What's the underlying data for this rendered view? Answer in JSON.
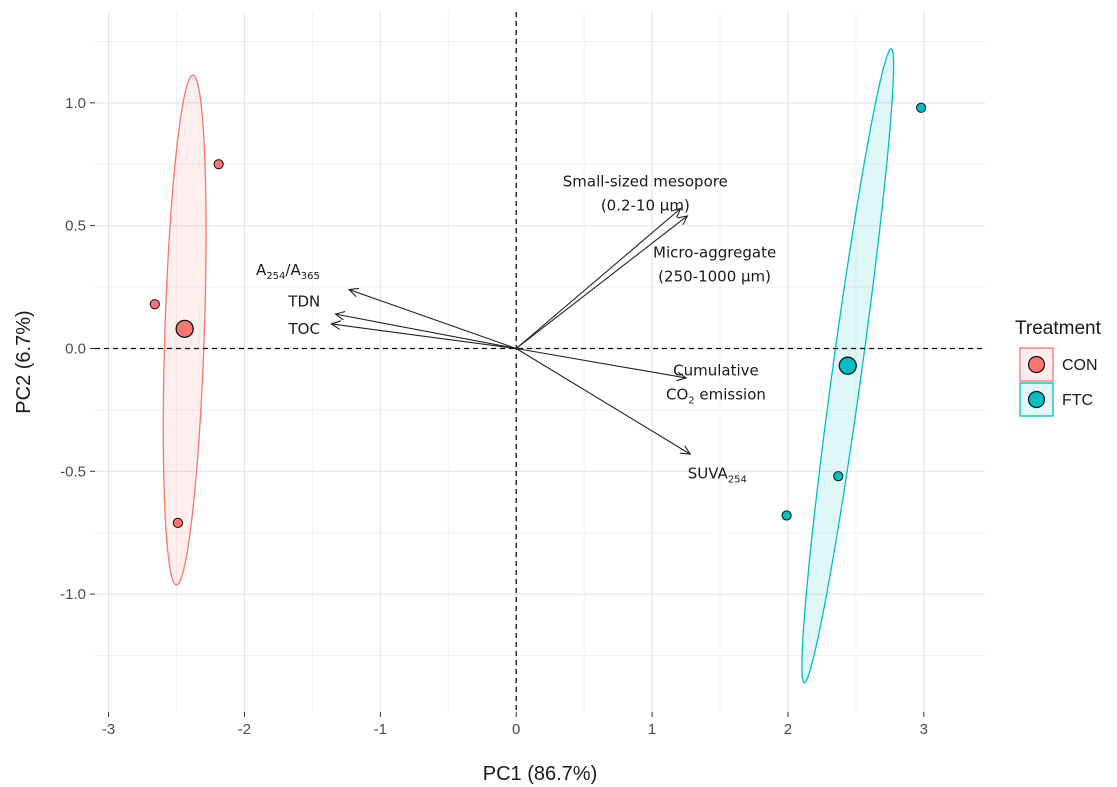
{
  "chart_data": {
    "type": "scatter",
    "title": "",
    "xlabel": "PC1 (86.7%)",
    "ylabel": "PC2 (6.7%)",
    "xlim": [
      -3.1,
      3.45
    ],
    "ylim": [
      -1.48,
      1.37
    ],
    "x_ticks": [
      -3,
      -2,
      -1,
      0,
      1,
      2,
      3
    ],
    "y_ticks": [
      -1.0,
      -0.5,
      0.0,
      0.5,
      1.0
    ],
    "x_tick_labels": [
      "-3",
      "-2",
      "-1",
      "0",
      "1",
      "2",
      "3"
    ],
    "y_tick_labels": [
      "-1.0",
      "-0.5",
      "0.0",
      "0.5",
      "1.0"
    ],
    "grid": true,
    "legend": {
      "title": "Treatment",
      "position": "right",
      "entries": [
        {
          "label": "CON",
          "color": "#F8766D"
        },
        {
          "label": "FTC",
          "color": "#00BFC4"
        }
      ]
    },
    "series": [
      {
        "name": "CON",
        "color": "#F8766D",
        "points": [
          {
            "x": -2.19,
            "y": 0.75
          },
          {
            "x": -2.66,
            "y": 0.18
          },
          {
            "x": -2.49,
            "y": -0.71
          }
        ],
        "centroid": {
          "x": -2.44,
          "y": 0.08
        },
        "ellipse": {
          "cx": -2.44,
          "cy": 0.075,
          "a": 1.04,
          "b": 0.145,
          "angle_deg": 86.6
        }
      },
      {
        "name": "FTC",
        "color": "#00BFC4",
        "points": [
          {
            "x": 2.98,
            "y": 0.98
          },
          {
            "x": 2.37,
            "y": -0.52
          },
          {
            "x": 1.99,
            "y": -0.68
          }
        ],
        "centroid": {
          "x": 2.44,
          "y": -0.07
        },
        "ellipse": {
          "cx": 2.44,
          "cy": -0.07,
          "a": 1.33,
          "b": 0.105,
          "angle_deg": 76.0
        }
      }
    ],
    "loadings": [
      {
        "x": 1.21,
        "y": 0.57,
        "label": "Small-sized mesopore\n(0.2-10 μm)",
        "label_x": 0.95,
        "label_y": 0.66
      },
      {
        "x": 1.26,
        "y": 0.54,
        "label": "Micro-aggregate\n(250-1000 μm)",
        "label_x": 1.46,
        "label_y": 0.37
      },
      {
        "x": -1.23,
        "y": 0.24,
        "label": "A254/A365",
        "label_x": -1.68,
        "label_y": 0.3
      },
      {
        "x": -1.33,
        "y": 0.14,
        "label": "TDN",
        "label_x": -1.56,
        "label_y": 0.17
      },
      {
        "x": -1.36,
        "y": 0.1,
        "label": "TOC",
        "label_x": -1.56,
        "label_y": 0.06
      },
      {
        "x": 1.25,
        "y": -0.12,
        "label": "Cumulative\nCO2 emission",
        "label_x": 1.47,
        "label_y": -0.11
      },
      {
        "x": 1.28,
        "y": -0.43,
        "label": "SUVA254",
        "label_x": 1.48,
        "label_y": -0.53
      }
    ]
  }
}
